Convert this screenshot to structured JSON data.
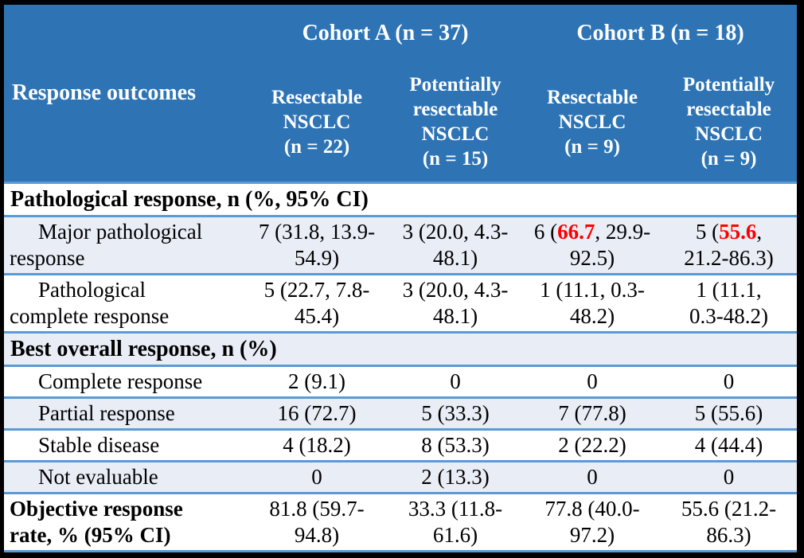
{
  "colors": {
    "header_bg": "#2E74B5",
    "alt_row_bg": "#E9EDF6",
    "row_border": "#5B9BD5",
    "frame": "#000000",
    "highlight": "#FF0000"
  },
  "header": {
    "response_outcomes": "Response outcomes",
    "cohort_a": "Cohort A (n = 37)",
    "cohort_b": "Cohort B (n = 18)",
    "col_resectable_a": "Resectable\nNSCLC\n(n = 22)",
    "col_pot_resectable_a": "Potentially\nresectable\nNSCLC\n(n = 15)",
    "col_resectable_b": "Resectable\nNSCLC\n(n = 9)",
    "col_pot_resectable_b": "Potentially\nresectable\nNSCLC\n(n = 9)"
  },
  "sections": {
    "pathological": "Pathological response, n (%, 95% CI)",
    "best_overall": "Best overall response, n (%)"
  },
  "rows": {
    "mpr": {
      "label": "Major pathological\nresponse",
      "c1": "7 (31.8, 13.9-\n54.9)",
      "c2": "3 (20.0, 4.3-\n48.1)",
      "c3_prefix": "6 (",
      "c3_red": "66.7",
      "c3_suffix": ", 29.9-\n92.5)",
      "c4_prefix": "5 (",
      "c4_red": "55.6",
      "c4_suffix": ",\n21.2-86.3)"
    },
    "pcr": {
      "label": "Pathological\ncomplete response",
      "c1": "5 (22.7, 7.8-\n45.4)",
      "c2": "3 (20.0, 4.3-\n48.1)",
      "c3": "1 (11.1, 0.3-\n48.2)",
      "c4": "1 (11.1,\n0.3-48.2)"
    },
    "cr": {
      "label": "Complete response",
      "c1": "2 (9.1)",
      "c2": "0",
      "c3": "0",
      "c4": "0"
    },
    "pr": {
      "label": "Partial response",
      "c1": "16 (72.7)",
      "c2": "5 (33.3)",
      "c3": "7 (77.8)",
      "c4": "5 (55.6)"
    },
    "sd": {
      "label": "Stable disease",
      "c1": "4 (18.2)",
      "c2": "8 (53.3)",
      "c3": "2 (22.2)",
      "c4": "4 (44.4)"
    },
    "ne": {
      "label": "Not evaluable",
      "c1": "0",
      "c2": "2 (13.3)",
      "c3": "0",
      "c4": "0"
    },
    "orr": {
      "label": "Objective response\nrate, % (95% CI)",
      "c1": "81.8 (59.7-\n94.8)",
      "c2": "33.3 (11.8-\n61.6)",
      "c3": "77.8 (40.0-\n97.2)",
      "c4": "55.6 (21.2-\n86.3)"
    }
  }
}
